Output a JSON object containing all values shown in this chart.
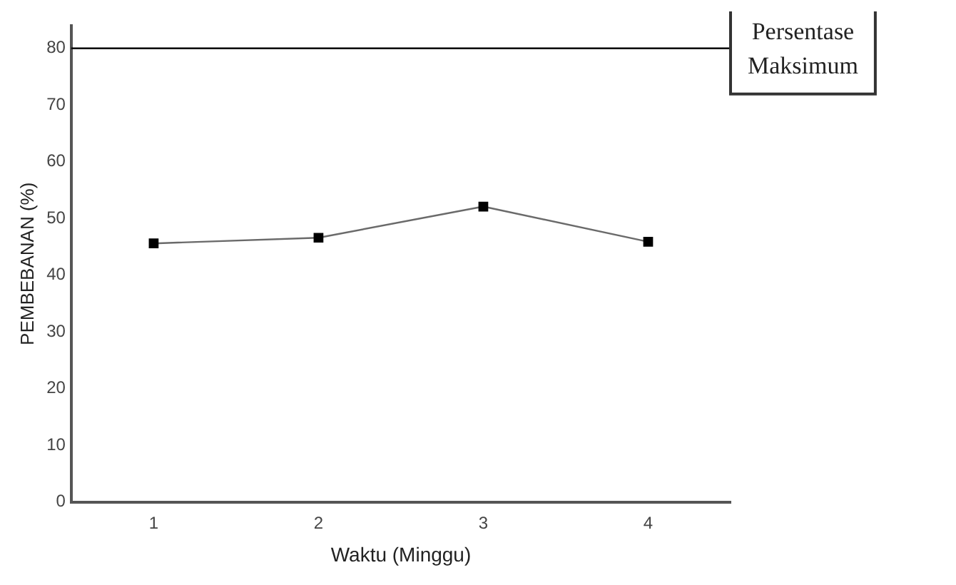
{
  "chart_data": {
    "type": "line",
    "xlabel": "Waktu (Minggu)",
    "ylabel": "PEMBEBANAN (%)",
    "categories": [
      "1",
      "2",
      "3",
      "4"
    ],
    "series": [
      {
        "color": "#000000",
        "values": [
          45.6,
          46.6,
          52.1,
          45.9
        ]
      }
    ],
    "ylim": [
      0,
      84
    ],
    "yticks": [
      0,
      10,
      20,
      30,
      40,
      50,
      60,
      70,
      80
    ],
    "grid": false,
    "legend": false,
    "marker": "square",
    "line_style": "solid",
    "ref_lines": [
      {
        "axis": "y",
        "value": 80,
        "label": "Persentase Maksimum",
        "color": "#000000"
      }
    ]
  }
}
